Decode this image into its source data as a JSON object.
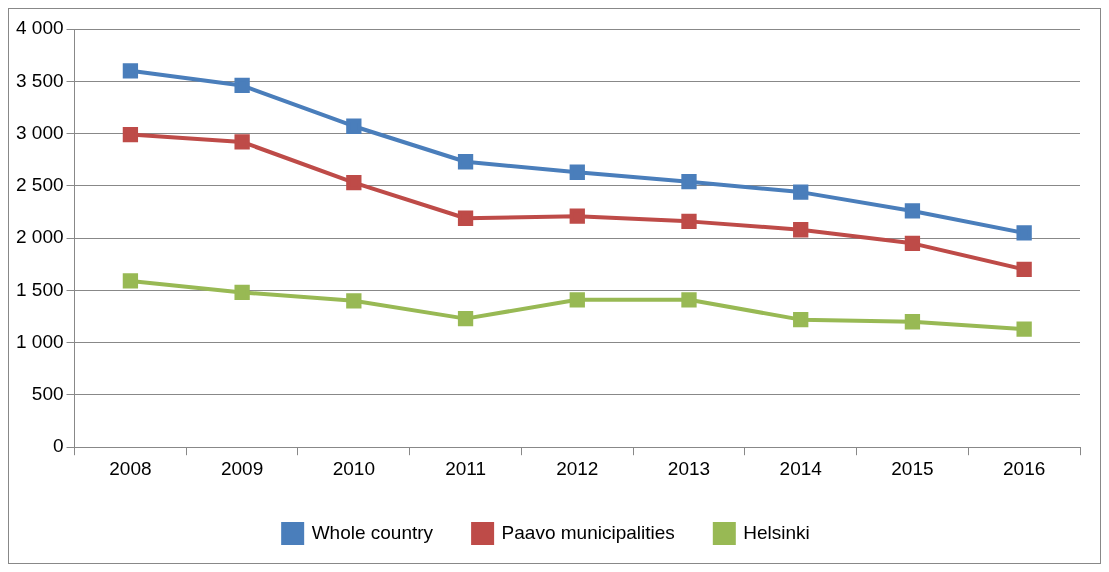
{
  "chart_data": {
    "type": "line",
    "categories": [
      "2008",
      "2009",
      "2010",
      "2011",
      "2012",
      "2013",
      "2014",
      "2015",
      "2016"
    ],
    "series": [
      {
        "name": "Whole country",
        "color": "#4a7ebb",
        "values": [
          3600,
          3460,
          3070,
          2730,
          2630,
          2540,
          2440,
          2260,
          2050
        ]
      },
      {
        "name": "Paavo municipalities",
        "color": "#be4b48",
        "values": [
          2990,
          2920,
          2530,
          2190,
          2210,
          2160,
          2080,
          1950,
          1700
        ]
      },
      {
        "name": "Helsinki",
        "color": "#98b954",
        "values": [
          1590,
          1480,
          1400,
          1230,
          1410,
          1410,
          1220,
          1200,
          1130
        ]
      }
    ],
    "ylim": [
      0,
      4000
    ],
    "yticks": [
      {
        "value": 0,
        "label": "0"
      },
      {
        "value": 500,
        "label": "500"
      },
      {
        "value": 1000,
        "label": "1 000"
      },
      {
        "value": 1500,
        "label": "1 500"
      },
      {
        "value": 2000,
        "label": "2 000"
      },
      {
        "value": 2500,
        "label": "2 500"
      },
      {
        "value": 3000,
        "label": "3 000"
      },
      {
        "value": 3500,
        "label": "3 500"
      },
      {
        "value": 4000,
        "label": "4 000"
      }
    ],
    "grid": "y",
    "legend": "bottom",
    "marker": "square",
    "line_style": "solid"
  }
}
